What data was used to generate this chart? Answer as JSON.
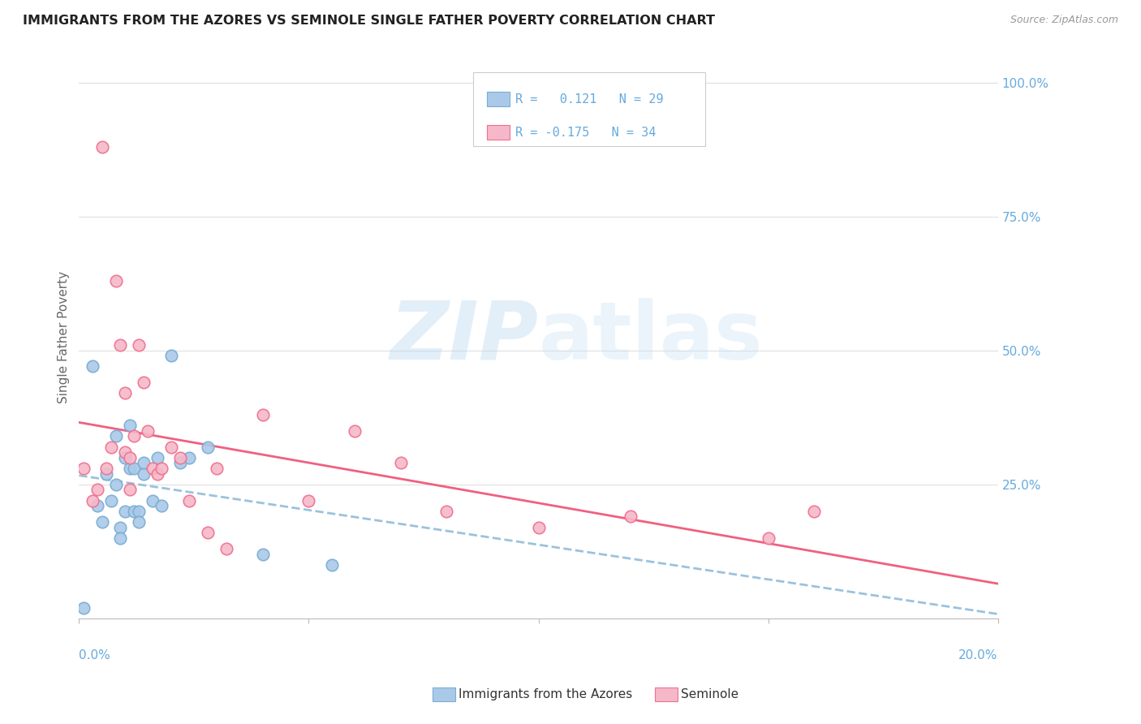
{
  "title": "IMMIGRANTS FROM THE AZORES VS SEMINOLE SINGLE FATHER POVERTY CORRELATION CHART",
  "source": "Source: ZipAtlas.com",
  "ylabel": "Single Father Poverty",
  "right_ytick_vals": [
    1.0,
    0.75,
    0.5,
    0.25
  ],
  "right_ytick_labels": [
    "100.0%",
    "75.0%",
    "50.0%",
    "25.0%"
  ],
  "watermark_zip": "ZIP",
  "watermark_atlas": "atlas",
  "xlabel_legend1": "Immigrants from the Azores",
  "xlabel_legend2": "Seminole",
  "blue_color": "#aac9e8",
  "pink_color": "#f5b8c8",
  "blue_edge_color": "#7aadd4",
  "pink_edge_color": "#f07090",
  "blue_line_color": "#8ab8d8",
  "pink_line_color": "#f06080",
  "title_color": "#222222",
  "source_color": "#999999",
  "axis_label_color": "#66aadd",
  "grid_color": "#e0e0e0",
  "blue_scatter_x": [
    0.001,
    0.003,
    0.004,
    0.005,
    0.006,
    0.007,
    0.008,
    0.008,
    0.009,
    0.009,
    0.01,
    0.01,
    0.011,
    0.011,
    0.012,
    0.012,
    0.013,
    0.013,
    0.014,
    0.014,
    0.016,
    0.017,
    0.018,
    0.02,
    0.022,
    0.024,
    0.028,
    0.04,
    0.055
  ],
  "blue_scatter_y": [
    0.02,
    0.47,
    0.21,
    0.18,
    0.27,
    0.22,
    0.34,
    0.25,
    0.17,
    0.15,
    0.2,
    0.3,
    0.28,
    0.36,
    0.2,
    0.28,
    0.2,
    0.18,
    0.27,
    0.29,
    0.22,
    0.3,
    0.21,
    0.49,
    0.29,
    0.3,
    0.32,
    0.12,
    0.1
  ],
  "pink_scatter_x": [
    0.001,
    0.003,
    0.004,
    0.005,
    0.006,
    0.007,
    0.008,
    0.009,
    0.01,
    0.01,
    0.011,
    0.011,
    0.012,
    0.013,
    0.014,
    0.015,
    0.016,
    0.017,
    0.018,
    0.02,
    0.022,
    0.024,
    0.028,
    0.03,
    0.032,
    0.04,
    0.05,
    0.06,
    0.07,
    0.08,
    0.1,
    0.12,
    0.15,
    0.16
  ],
  "pink_scatter_y": [
    0.28,
    0.22,
    0.24,
    0.88,
    0.28,
    0.32,
    0.63,
    0.51,
    0.31,
    0.42,
    0.24,
    0.3,
    0.34,
    0.51,
    0.44,
    0.35,
    0.28,
    0.27,
    0.28,
    0.32,
    0.3,
    0.22,
    0.16,
    0.28,
    0.13,
    0.38,
    0.22,
    0.35,
    0.29,
    0.2,
    0.17,
    0.19,
    0.15,
    0.2
  ],
  "xlim": [
    0.0,
    0.2
  ],
  "ylim": [
    0.0,
    1.05
  ],
  "xtick_positions": [
    0.0,
    0.05,
    0.1,
    0.15,
    0.2
  ]
}
